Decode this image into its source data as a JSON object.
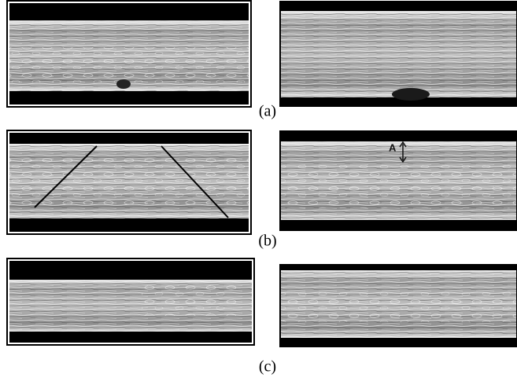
{
  "rows": [
    {
      "caption": "(a)"
    },
    {
      "caption": "(b)",
      "annotation": "A"
    },
    {
      "caption": "(c)"
    }
  ]
}
